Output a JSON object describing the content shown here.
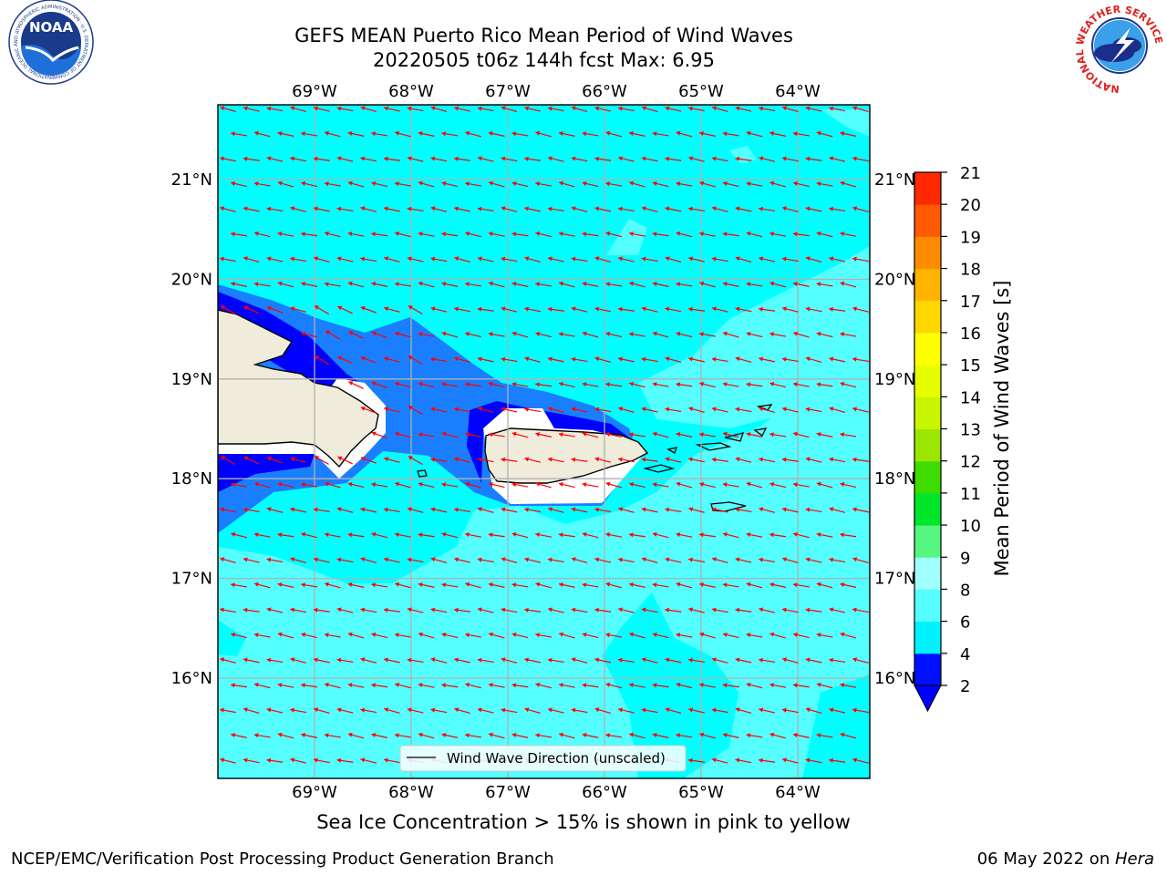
{
  "header": {
    "title_line1": "GEFS MEAN Puerto Rico Mean Period of Wind Waves",
    "title_line2": "20220505 t06z 144h fcst   Max: 6.95",
    "left_logo_text": "NOAA",
    "left_logo_ring_text": "NATIONAL OCEANIC AND ATMOSPHERIC ADMINISTRATION · U.S. DEPARTMENT OF COMMERCE",
    "right_logo_ring_text": "NATIONAL WEATHER SERVICE"
  },
  "map": {
    "lon_labels": [
      "69°W",
      "68°W",
      "67°W",
      "66°W",
      "65°W",
      "64°W"
    ],
    "lat_labels": [
      "21°N",
      "20°N",
      "19°N",
      "18°N",
      "17°N",
      "16°N"
    ],
    "legend_label": "Wind Wave Direction (unscaled)",
    "grid": true,
    "arrow_color": "#ff0000",
    "land_color": "#efecdc",
    "ocean_colors": {
      "2-4": "#0000ff",
      "4-6": "#1a7fff",
      "6-8": "#00ffff",
      "8-9": "#55ffff"
    }
  },
  "colorbar": {
    "label": "Mean Period of Wind Waves [s]",
    "ticks": [
      "2",
      "4",
      "6",
      "8",
      "9",
      "10",
      "11",
      "12",
      "13",
      "14",
      "15",
      "16",
      "17",
      "18",
      "19",
      "20",
      "21"
    ],
    "colors": [
      "#0010ff",
      "#00f2ff",
      "#55ffff",
      "#a0ffff",
      "#55f780",
      "#00e62a",
      "#3fdc00",
      "#9be600",
      "#c8f500",
      "#e6ff00",
      "#ffff00",
      "#ffd700",
      "#ffb400",
      "#ff8c00",
      "#ff5a00",
      "#ff2800"
    ],
    "extend_color": "#0000ff"
  },
  "footer": {
    "caption": "Sea Ice Concentration > 15% is shown in pink to yellow",
    "credit_left": "NCEP/EMC/Verification Post Processing Product Generation Branch",
    "credit_date": "06 May 2022 on ",
    "credit_host": "Hera"
  }
}
